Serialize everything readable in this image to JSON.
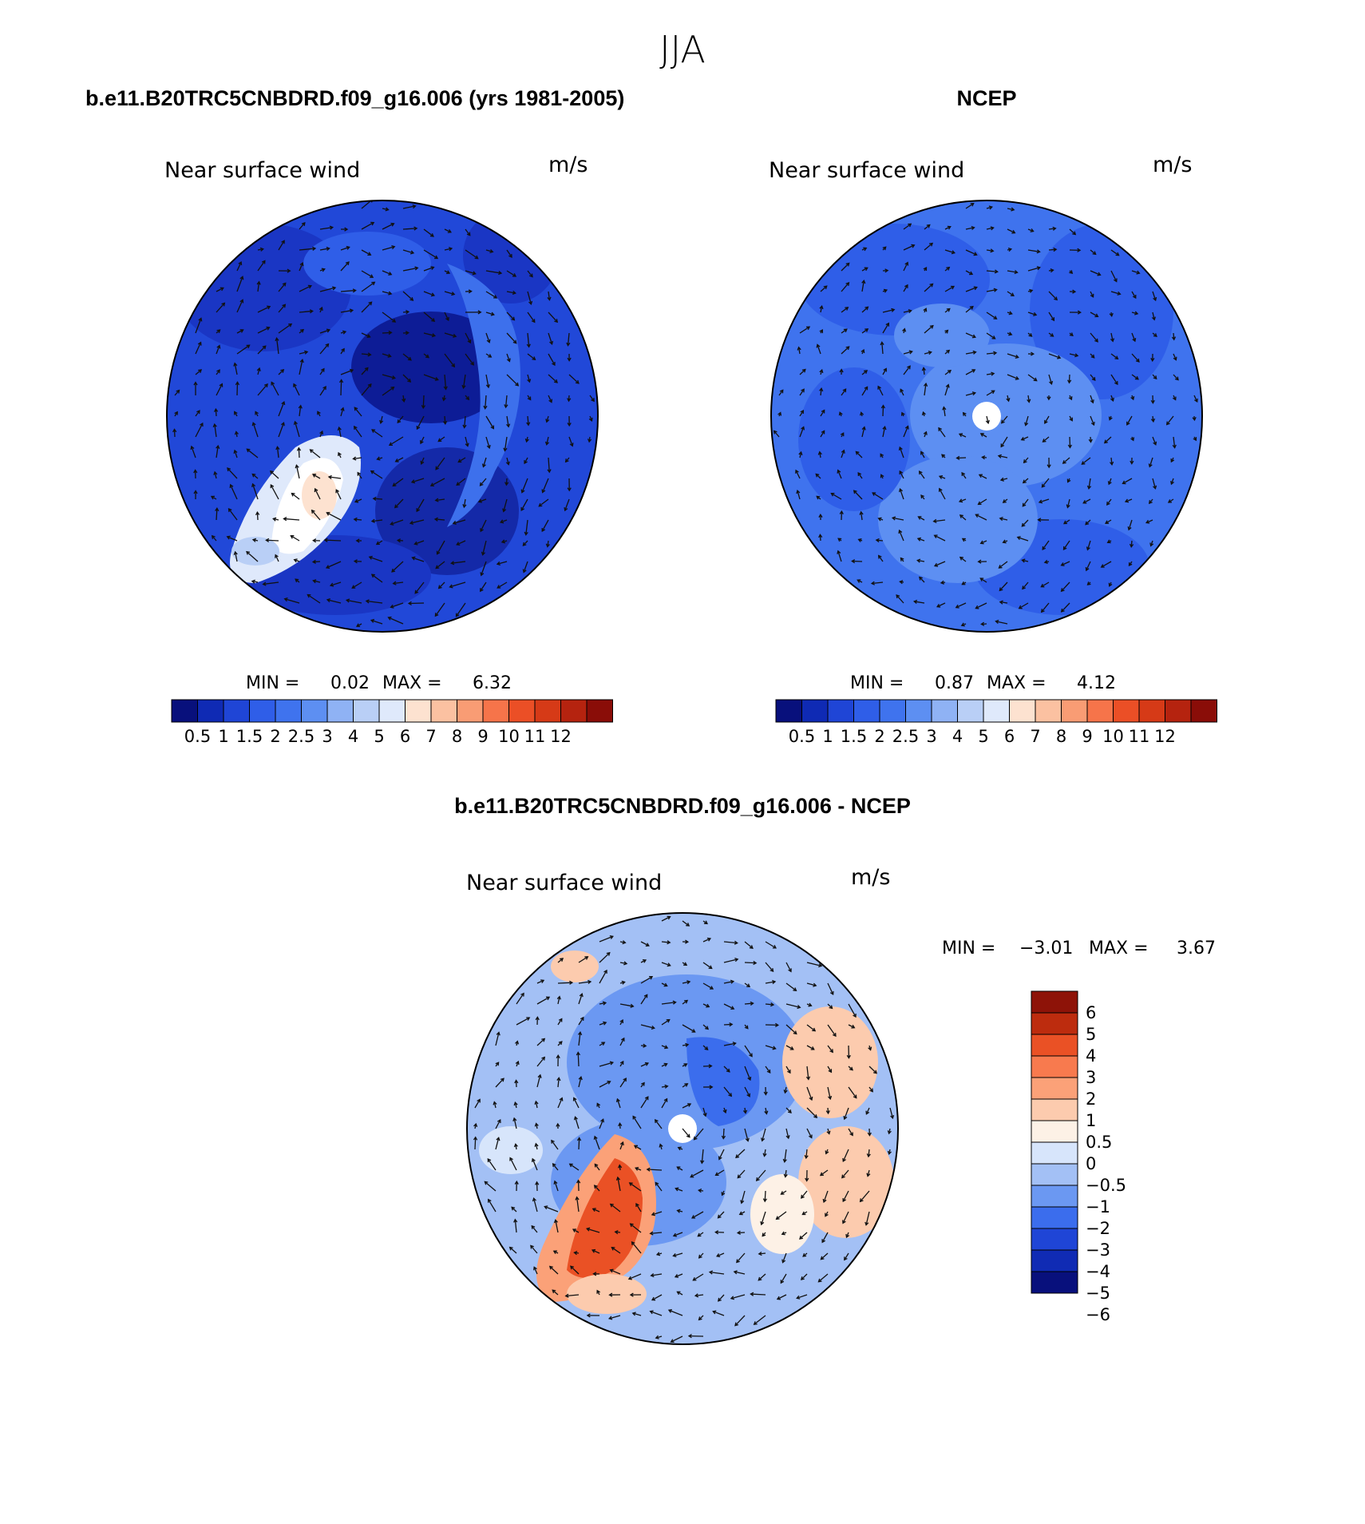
{
  "season": "JJA",
  "colors": {
    "seq": [
      "#08107c",
      "#0f2ab4",
      "#1f45d6",
      "#2f5ee8",
      "#3f73ee",
      "#5d8ff2",
      "#8fb2f4",
      "#b9cff6",
      "#dfe9fb",
      "#fde2d0",
      "#fbc1a1",
      "#f99c74",
      "#f6744a",
      "#eb4f26",
      "#d63a17",
      "#b5230f",
      "#8a0d08"
    ],
    "diff": [
      "#08107c",
      "#102bb4",
      "#1f45d6",
      "#3b6ded",
      "#6b98f2",
      "#a3c0f5",
      "#d7e5fb",
      "#fdf1e6",
      "#fccbae",
      "#fba178",
      "#f87a4e",
      "#ea5125",
      "#bd2c0e",
      "#8e1308"
    ]
  },
  "panels": [
    {
      "header": "b.e11.B20TRC5CNBDRD.f09_g16.006 (yrs 1981-2005)",
      "title": "Near surface wind",
      "units": "m/s",
      "min_label": "MIN =",
      "min": "0.02",
      "max_label": "MAX =",
      "max": "6.32",
      "levels": [
        "0.5",
        "1",
        "1.5",
        "2",
        "2.5",
        "3",
        "4",
        "5",
        "6",
        "7",
        "8",
        "9",
        "10",
        "11",
        "12"
      ]
    },
    {
      "header": "NCEP",
      "title": "Near surface wind",
      "units": "m/s",
      "min_label": "MIN =",
      "min": "0.87",
      "max_label": "MAX =",
      "max": "4.12",
      "levels": [
        "0.5",
        "1",
        "1.5",
        "2",
        "2.5",
        "3",
        "4",
        "5",
        "6",
        "7",
        "8",
        "9",
        "10",
        "11",
        "12"
      ]
    },
    {
      "header": "b.e11.B20TRC5CNBDRD.f09_g16.006 - NCEP",
      "title": "Near surface wind",
      "units": "m/s",
      "min_label": "MIN =",
      "min": "−3.01",
      "max_label": "MAX =",
      "max": "3.67",
      "levels": [
        "6",
        "5",
        "4",
        "3",
        "2",
        "1",
        "0.5",
        "0",
        "−0.5",
        "−1",
        "−2",
        "−3",
        "−4",
        "−5",
        "−6"
      ]
    }
  ]
}
